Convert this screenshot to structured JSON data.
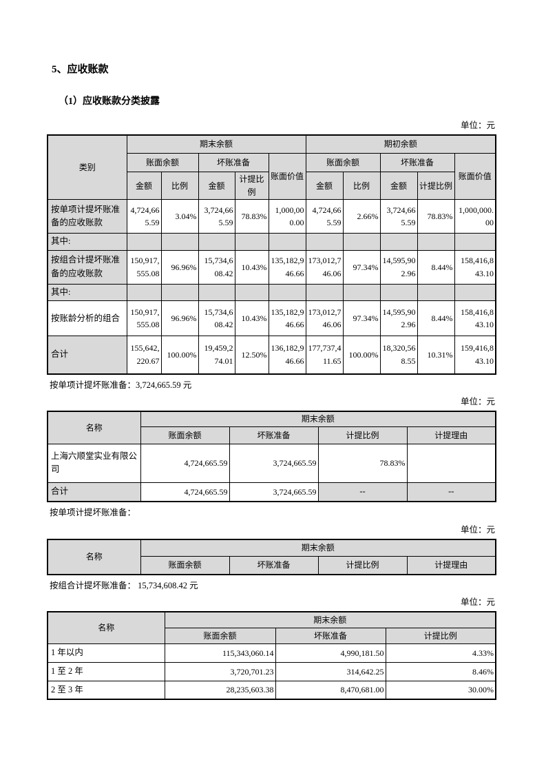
{
  "page": {
    "section_title": "5、应收账款",
    "subsection_title": "（1）应收账款分类披露",
    "unit_label": "单位：元",
    "note_individual_with_amount": "按单项计提坏账准备：3,724,665.59 元",
    "note_individual_empty": "按单项计提坏账准备：",
    "note_portfolio_with_amount": "按组合计提坏账准备：  15,734,608.42 元"
  },
  "labels": {
    "category": "类别",
    "name": "名称",
    "ending_balance": "期末余额",
    "beginning_balance": "期初余额",
    "book_balance": "账面余额",
    "bad_debt_provision": "坏账准备",
    "book_value": "账面价值",
    "amount": "金额",
    "ratio": "比例",
    "provision_ratio": "计提比例",
    "provision_reason": "计提理由"
  },
  "classification_table": {
    "rows": [
      {
        "label": "按单项计提坏账准备的应收账款",
        "type": "data",
        "cells": [
          "4,724,665.59",
          "3.04%",
          "3,724,665.59",
          "78.83%",
          "1,000,000.00",
          "4,724,665.59",
          "2.66%",
          "3,724,665.59",
          "78.83%",
          "1,000,000.00"
        ]
      },
      {
        "label": "其中:",
        "type": "divider",
        "cells": [
          "",
          "",
          "",
          "",
          "",
          "",
          "",
          "",
          "",
          ""
        ]
      },
      {
        "label": "按组合计提坏账准备的应收账款",
        "type": "data",
        "cells": [
          "150,917,555.08",
          "96.96%",
          "15,734,608.42",
          "10.43%",
          "135,182,946.66",
          "173,012,746.06",
          "97.34%",
          "14,595,902.96",
          "8.44%",
          "158,416,843.10"
        ]
      },
      {
        "label": "其中:",
        "type": "divider",
        "cells": [
          "",
          "",
          "",
          "",
          "",
          "",
          "",
          "",
          "",
          ""
        ]
      },
      {
        "label": "按账龄分析的组合",
        "type": "sub",
        "cells": [
          "150,917,555.08",
          "96.96%",
          "15,734,608.42",
          "10.43%",
          "135,182,946.66",
          "173,012,746.06",
          "97.34%",
          "14,595,902.96",
          "8.44%",
          "158,416,843.10"
        ]
      },
      {
        "label": "合计",
        "type": "total",
        "cells": [
          "155,642,220.67",
          "100.00%",
          "19,459,274.01",
          "12.50%",
          "136,182,946.66",
          "177,737,411.65",
          "100.00%",
          "18,320,568.55",
          "10.31%",
          "159,416,843.10"
        ]
      }
    ]
  },
  "individual_provision_table": {
    "rows": [
      {
        "label": "上海六顺堂实业有限公司",
        "type": "data",
        "cells": [
          "4,724,665.59",
          "3,724,665.59",
          "78.83%",
          ""
        ]
      },
      {
        "label": "合计",
        "type": "total",
        "cells": [
          "4,724,665.59",
          "3,724,665.59",
          "--",
          "--"
        ]
      }
    ]
  },
  "individual_provision_table_empty": {
    "rows": []
  },
  "aging_table": {
    "rows": [
      {
        "label": "1 年以内",
        "type": "data",
        "cells": [
          "115,343,060.14",
          "4,990,181.50",
          "4.33%"
        ]
      },
      {
        "label": "1 至 2 年",
        "type": "data",
        "cells": [
          "3,720,701.23",
          "314,642.25",
          "8.46%"
        ]
      },
      {
        "label": "2 至 3 年",
        "type": "data",
        "cells": [
          "28,235,603.38",
          "8,470,681.00",
          "30.00%"
        ]
      }
    ]
  }
}
